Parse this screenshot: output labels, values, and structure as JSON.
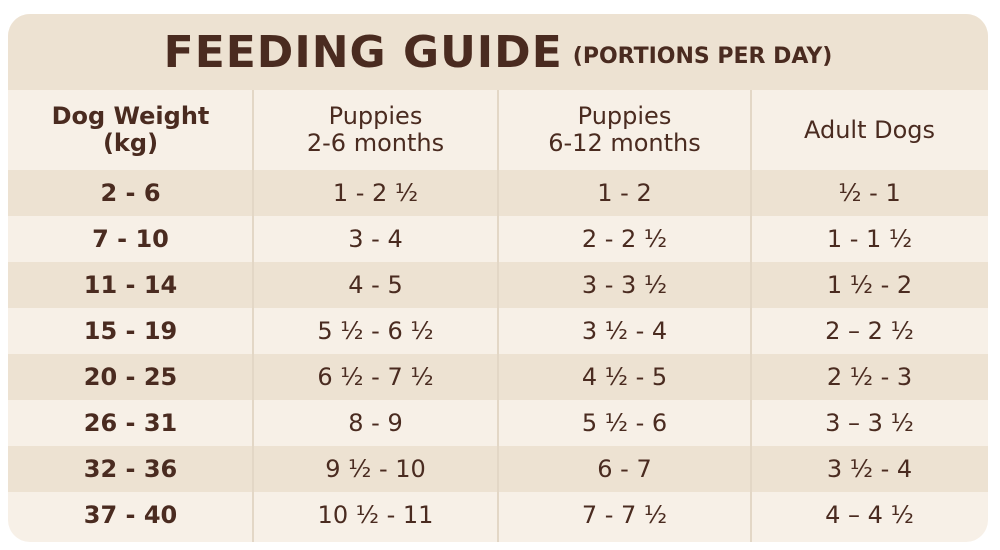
{
  "title": {
    "main": "FEEDING GUIDE",
    "sub": "(PORTIONS PER DAY)"
  },
  "headers": [
    "Dog Weight\n(kg)",
    "Puppies\n2-6 months",
    "Puppies\n6-12 months",
    "Adult Dogs"
  ],
  "rows": [
    [
      "2 - 6",
      "1 - 2 ½",
      "1 - 2",
      "½ - 1"
    ],
    [
      "7 - 10",
      "3 - 4",
      "2 - 2 ½",
      "1 - 1 ½"
    ],
    [
      "11 - 14",
      "4 - 5",
      "3 - 3 ½",
      "1 ½ - 2"
    ],
    [
      "15 - 19",
      "5 ½ - 6 ½",
      "3 ½ - 4",
      "2 – 2 ½"
    ],
    [
      "20 - 25",
      "6 ½ - 7 ½",
      "4 ½ - 5",
      "2 ½ - 3"
    ],
    [
      "26 - 31",
      "8 - 9",
      "5 ½ - 6",
      "3 – 3 ½"
    ],
    [
      "32 - 36",
      "9 ½ - 10",
      "6 - 7",
      "3 ½ - 4"
    ],
    [
      "37 - 40",
      "10 ½ - 11",
      "7 - 7 ½",
      "4 – 4 ½"
    ]
  ],
  "colors": {
    "text": "#4a2b20",
    "band": "#ede2d2",
    "background": "#f7f0e7"
  }
}
